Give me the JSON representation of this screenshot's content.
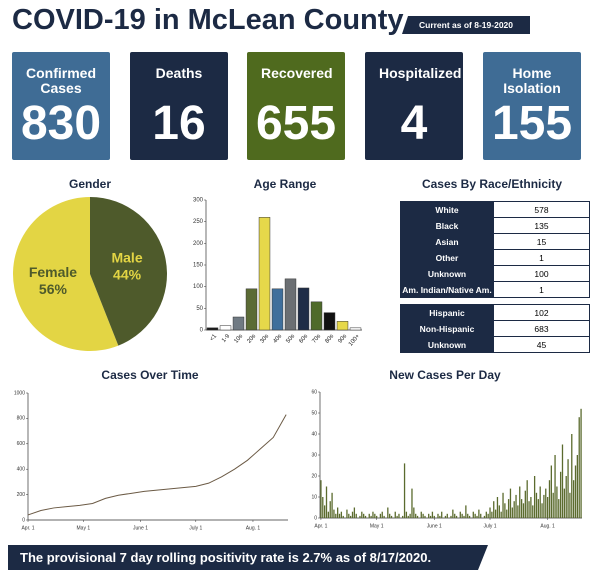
{
  "header": {
    "title": "COVID-19 in McLean County",
    "badge": "Current as of 8-19-2020"
  },
  "stats": [
    {
      "label": "Confirmed Cases",
      "value": 830,
      "color": "#3f6c95"
    },
    {
      "label": "Deaths",
      "value": 16,
      "color": "#1c2a44"
    },
    {
      "label": "Recovered",
      "value": 655,
      "color": "#4f6a1e"
    },
    {
      "label": "Hospitalized",
      "value": 4,
      "color": "#1c2a44"
    },
    {
      "label": "Home Isolation",
      "value": 155,
      "color": "#3f6c95"
    }
  ],
  "race_table": {
    "title": "Cases By Race/Ethnicity",
    "race_rows": [
      [
        "White",
        578
      ],
      [
        "Black",
        135
      ],
      [
        "Asian",
        15
      ],
      [
        "Other",
        1
      ],
      [
        "Unknown",
        100
      ],
      [
        "Am. Indian/Native Am.",
        1
      ]
    ],
    "ethnicity_rows": [
      [
        "Hispanic",
        102
      ],
      [
        "Non-Hispanic",
        683
      ],
      [
        "Unknown",
        45
      ]
    ]
  },
  "footer": {
    "text": "The provisional 7 day rolling positivity rate is 2.7% as of 8/17/2020."
  },
  "chart_data": [
    {
      "type": "pie",
      "title": "Gender",
      "labels": [
        "Female",
        "Male"
      ],
      "values": [
        56,
        44
      ],
      "value_labels": [
        "56%",
        "44%"
      ],
      "colors": [
        "#e3d544",
        "#4e5a2b"
      ]
    },
    {
      "type": "bar",
      "title": "Age Range",
      "categories": [
        "<1",
        "1-9",
        "10s",
        "20s",
        "30s",
        "40s",
        "50s",
        "60s",
        "70s",
        "80s",
        "90s",
        "100+"
      ],
      "values": [
        5,
        10,
        30,
        95,
        260,
        95,
        118,
        97,
        65,
        40,
        20,
        5
      ],
      "colors": [
        "#1a1a1a",
        "#ffffff",
        "#707a83",
        "#5b6b35",
        "#e6d84a",
        "#3f6f9c",
        "#6b6f73",
        "#1f2d47",
        "#4f6a2a",
        "#111111",
        "#e6d84a",
        "#ffffff"
      ],
      "ylim": [
        0,
        300
      ],
      "yticks": [
        0,
        50,
        100,
        150,
        200,
        250,
        300
      ]
    },
    {
      "type": "line",
      "title": "Cases Over Time",
      "x": [
        0,
        7,
        14,
        21,
        28,
        35,
        42,
        49,
        56,
        63,
        70,
        77,
        84,
        91,
        98,
        105,
        112,
        119,
        126,
        133,
        140
      ],
      "values": [
        40,
        75,
        95,
        105,
        115,
        130,
        170,
        195,
        210,
        225,
        235,
        245,
        255,
        265,
        290,
        340,
        400,
        470,
        560,
        650,
        830
      ],
      "color": "#6b5a45",
      "xlim": [
        0,
        141
      ],
      "xticks": [
        {
          "value": 0,
          "label": "Apr. 1"
        },
        {
          "value": 30,
          "label": "May 1"
        },
        {
          "value": 61,
          "label": "June 1"
        },
        {
          "value": 91,
          "label": "July 1"
        },
        {
          "value": 122,
          "label": "Aug. 1"
        }
      ],
      "ylim": [
        0,
        1000
      ],
      "yticks": [
        0,
        200,
        400,
        600,
        800,
        1000
      ]
    },
    {
      "type": "bar",
      "title": "New Cases Per Day",
      "x": [
        0,
        1,
        2,
        3,
        4,
        5,
        6,
        7,
        8,
        9,
        10,
        11,
        12,
        13,
        14,
        15,
        16,
        17,
        18,
        19,
        20,
        21,
        22,
        23,
        24,
        25,
        26,
        27,
        28,
        29,
        30,
        31,
        32,
        33,
        34,
        35,
        36,
        37,
        38,
        39,
        40,
        41,
        42,
        43,
        44,
        45,
        46,
        47,
        48,
        49,
        50,
        51,
        52,
        53,
        54,
        55,
        56,
        57,
        58,
        59,
        60,
        61,
        62,
        63,
        64,
        65,
        66,
        67,
        68,
        69,
        70,
        71,
        72,
        73,
        74,
        75,
        76,
        77,
        78,
        79,
        80,
        81,
        82,
        83,
        84,
        85,
        86,
        87,
        88,
        89,
        90,
        91,
        92,
        93,
        94,
        95,
        96,
        97,
        98,
        99,
        100,
        101,
        102,
        103,
        104,
        105,
        106,
        107,
        108,
        109,
        110,
        111,
        112,
        113,
        114,
        115,
        116,
        117,
        118,
        119,
        120,
        121,
        122,
        123,
        124,
        125,
        126,
        127,
        128,
        129,
        130,
        131,
        132,
        133,
        134,
        135,
        136,
        137,
        138,
        139,
        140
      ],
      "values": [
        18,
        10,
        6,
        15,
        3,
        8,
        12,
        4,
        2,
        5,
        2,
        3,
        1,
        0,
        4,
        2,
        1,
        3,
        5,
        2,
        0,
        1,
        3,
        2,
        1,
        0,
        2,
        1,
        3,
        2,
        1,
        0,
        2,
        3,
        1,
        0,
        5,
        2,
        1,
        0,
        3,
        1,
        2,
        0,
        1,
        26,
        3,
        1,
        2,
        14,
        5,
        2,
        1,
        0,
        3,
        2,
        1,
        0,
        2,
        1,
        3,
        1,
        0,
        2,
        1,
        3,
        0,
        1,
        2,
        0,
        1,
        4,
        2,
        1,
        0,
        3,
        2,
        1,
        6,
        2,
        1,
        0,
        3,
        2,
        1,
        4,
        2,
        0,
        1,
        3,
        2,
        5,
        3,
        8,
        4,
        10,
        6,
        3,
        12,
        7,
        4,
        9,
        14,
        5,
        8,
        11,
        6,
        15,
        9,
        7,
        13,
        18,
        8,
        10,
        6,
        20,
        12,
        9,
        15,
        7,
        11,
        14,
        10,
        18,
        25,
        12,
        30,
        15,
        9,
        22,
        35,
        14,
        20,
        28,
        12,
        40,
        18,
        25,
        30,
        48,
        52
      ],
      "color": "#5b6b2e",
      "xlim": [
        -0.5,
        140.5
      ],
      "xticks": [
        {
          "value": 0,
          "label": "Apr. 1"
        },
        {
          "value": 30,
          "label": "May 1"
        },
        {
          "value": 61,
          "label": "June 1"
        },
        {
          "value": 91,
          "label": "July 1"
        },
        {
          "value": 122,
          "label": "Aug. 1"
        }
      ],
      "ylim": [
        0,
        60
      ],
      "yticks": [
        0,
        10,
        20,
        30,
        40,
        50,
        60
      ]
    }
  ]
}
